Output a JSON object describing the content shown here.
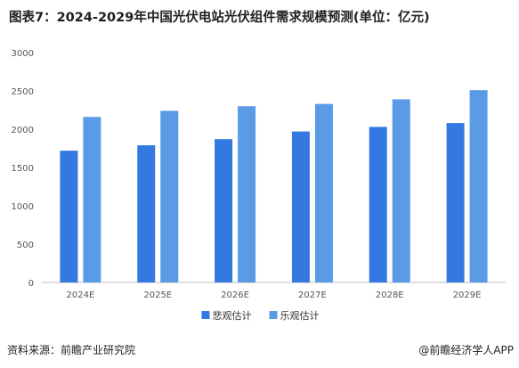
{
  "figure": {
    "title": "图表7：2024-2029年中国光伏电站光伏组件需求规模预测(单位：亿元)",
    "source": "资料来源：前瞻产业研究院",
    "credit": "@前瞻经济学人APP"
  },
  "colors": {
    "series_1": "#3478e2",
    "series_2": "#5b9be6",
    "axis_text": "#555555",
    "axis_line": "#bfbfbf"
  },
  "chart_data": {
    "type": "bar",
    "title": "图表7：2024-2029年中国光伏电站光伏组件需求规模预测(单位：亿元)",
    "xlabel": "",
    "ylabel": "",
    "categories": [
      "2024E",
      "2025E",
      "2026E",
      "2027E",
      "2028E",
      "2029E"
    ],
    "series": [
      {
        "name": "悲观估计",
        "values": [
          1720,
          1790,
          1870,
          1970,
          2030,
          2080
        ]
      },
      {
        "name": "乐观估计",
        "values": [
          2160,
          2240,
          2300,
          2330,
          2390,
          2510
        ]
      }
    ],
    "ylim": [
      0,
      3000
    ],
    "yticks": [
      0,
      500,
      1000,
      1500,
      2000,
      2500,
      3000
    ],
    "grid": false,
    "legend": "bottom-center"
  }
}
